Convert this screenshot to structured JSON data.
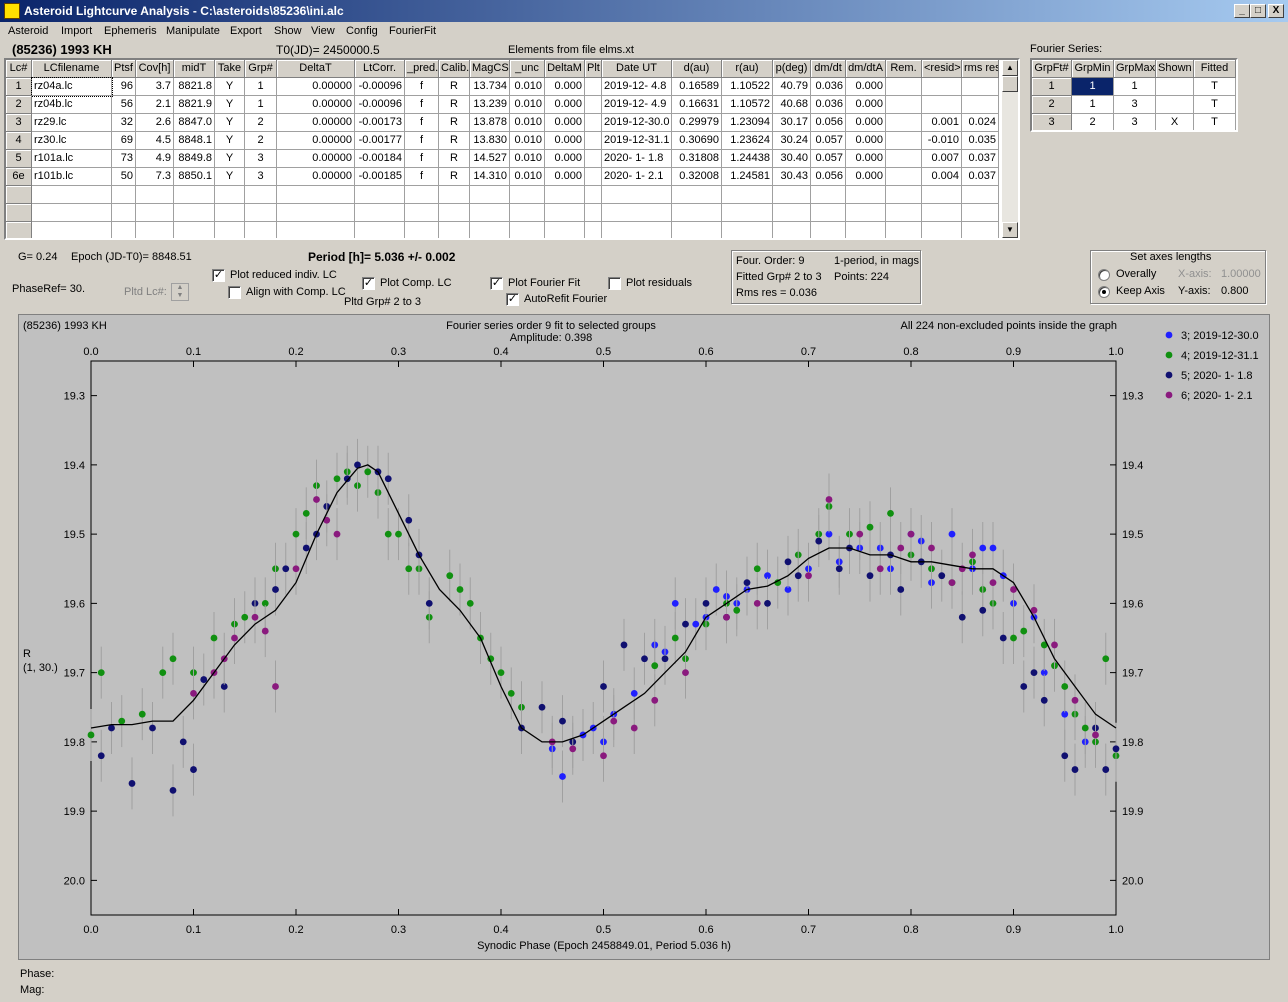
{
  "window": {
    "title": "Asteroid Lightcurve Analysis - C:\\asteroids\\85236\\ini.alc",
    "min": "_",
    "max": "□",
    "close": "X"
  },
  "menu": [
    "Asteroid",
    "Import",
    "Ephemeris",
    "Manipulate",
    "Export",
    "Show",
    "View",
    "Config",
    "FourierFit"
  ],
  "header": {
    "object": "(85236) 1993 KH",
    "t0": "T0(JD)= 2450000.5",
    "elements": "Elements from file elms.xt",
    "fourier_series_label": "Fourier Series:"
  },
  "lc_table": {
    "columns": [
      "Lc#",
      "LCfilename",
      "Ptsf",
      "Cov[h]",
      "midT",
      "Take",
      "Grp#",
      "DeltaT",
      "LtCorr.",
      "_pred.",
      "Calib.",
      "MagCS",
      "_unc",
      "DeltaM",
      "Plt",
      "Date UT",
      "d(au)",
      "r(au)",
      "p(deg)",
      "dm/dt",
      "dm/dtA",
      "Rem.",
      "<resid>",
      "rms res"
    ],
    "rows": [
      [
        "1",
        "rz04a.lc",
        "96",
        "3.7",
        "8821.8",
        "Y",
        "1",
        "0.00000",
        "-0.00096",
        "f",
        "R",
        "13.734",
        "0.010",
        "0.000",
        "",
        "2019-12- 4.8",
        "0.16589",
        "1.10522",
        "40.79",
        "0.036",
        "0.000",
        "",
        "",
        ""
      ],
      [
        "2",
        "rz04b.lc",
        "56",
        "2.1",
        "8821.9",
        "Y",
        "1",
        "0.00000",
        "-0.00096",
        "f",
        "R",
        "13.239",
        "0.010",
        "0.000",
        "",
        "2019-12- 4.9",
        "0.16631",
        "1.10572",
        "40.68",
        "0.036",
        "0.000",
        "",
        "",
        ""
      ],
      [
        "3",
        "rz29.lc",
        "32",
        "2.6",
        "8847.0",
        "Y",
        "2",
        "0.00000",
        "-0.00173",
        "f",
        "R",
        "13.878",
        "0.010",
        "0.000",
        "",
        "2019-12-30.0",
        "0.29979",
        "1.23094",
        "30.17",
        "0.056",
        "0.000",
        "",
        "0.001",
        "0.024"
      ],
      [
        "4",
        "rz30.lc",
        "69",
        "4.5",
        "8848.1",
        "Y",
        "2",
        "0.00000",
        "-0.00177",
        "f",
        "R",
        "13.830",
        "0.010",
        "0.000",
        "",
        "2019-12-31.1",
        "0.30690",
        "1.23624",
        "30.24",
        "0.057",
        "0.000",
        "",
        "-0.010",
        "0.035"
      ],
      [
        "5",
        "r101a.lc",
        "73",
        "4.9",
        "8849.8",
        "Y",
        "3",
        "0.00000",
        "-0.00184",
        "f",
        "R",
        "14.527",
        "0.010",
        "0.000",
        "",
        "2020- 1- 1.8",
        "0.31808",
        "1.24438",
        "30.40",
        "0.057",
        "0.000",
        "",
        "0.007",
        "0.037"
      ],
      [
        "6e",
        "r101b.lc",
        "50",
        "7.3",
        "8850.1",
        "Y",
        "3",
        "0.00000",
        "-0.00185",
        "f",
        "R",
        "14.310",
        "0.010",
        "0.000",
        "",
        "2020- 1- 2.1",
        "0.32008",
        "1.24581",
        "30.43",
        "0.056",
        "0.000",
        "",
        "0.004",
        "0.037"
      ]
    ]
  },
  "fourier_table": {
    "columns": [
      "GrpFt#",
      "GrpMin",
      "GrpMax",
      "Shown",
      "Fitted"
    ],
    "rows": [
      [
        "1",
        "1",
        "1",
        "",
        "T"
      ],
      [
        "2",
        "1",
        "3",
        "",
        "T"
      ],
      [
        "3",
        "2",
        "3",
        "X",
        "T"
      ]
    ]
  },
  "controls": {
    "g": "G= 0.24",
    "epoch": "Epoch (JD-T0)= 8848.51",
    "period": "Period [h]= 5.036 +/- 0.002",
    "phaseref": "PhaseRef= 30.",
    "pltd_lc": "Pltd Lc#:",
    "plot_reduced": "Plot reduced indiv. LC",
    "align_comp": "Align with Comp. LC",
    "plot_comp": "Plot Comp. LC",
    "pltd_grp": "Pltd Grp#  2   to   3",
    "plot_fourier": "Plot Fourier Fit",
    "autorefit": "AutoRefit Fourier",
    "plot_residuals": "Plot residuals",
    "four_order": "Four. Order:  9",
    "one_period": "1-period, in mags",
    "fitted_grp": "Fitted Grp# 2 to 3",
    "points": "Points: 224",
    "rms": "Rms res     = 0.036",
    "axes_title": "Set axes lengths",
    "overally": "Overally",
    "keep_axis": "Keep Axis",
    "xaxis_label": "X-axis:",
    "xaxis_val": "1.00000",
    "yaxis_label": "Y-axis:",
    "yaxis_val": "0.800",
    "phase_label": "Phase:",
    "mag_label": "Mag:",
    "check_mark": "✓"
  },
  "chart_data": {
    "type": "scatter",
    "corner_title": "(85236) 1993 KH",
    "title": "Fourier series order 9 fit to selected groups",
    "subtitle": "Amplitude: 0.398",
    "note": "All 224 non-excluded points inside the graph",
    "xlabel": "Synodic Phase (Epoch 2458849.01, Period 5.036 h)",
    "ylabel": "R",
    "ylabel2": "(1, 30.)",
    "xlim": [
      0,
      1
    ],
    "ylim": [
      20.05,
      19.25
    ],
    "xticks": [
      "0.0",
      "0.1",
      "0.2",
      "0.3",
      "0.4",
      "0.5",
      "0.6",
      "0.7",
      "0.8",
      "0.9",
      "1.0"
    ],
    "yticks": [
      "19.3",
      "19.4",
      "19.5",
      "19.6",
      "19.7",
      "19.8",
      "19.9",
      "20.0"
    ],
    "series": [
      {
        "name": "3; 2019-12-30.0",
        "color": "#2020ff",
        "x": [
          0.45,
          0.46,
          0.48,
          0.49,
          0.5,
          0.51,
          0.53,
          0.55,
          0.56,
          0.57,
          0.59,
          0.6,
          0.61,
          0.62,
          0.63,
          0.64,
          0.66,
          0.68,
          0.7,
          0.72,
          0.73,
          0.75,
          0.77,
          0.78,
          0.8,
          0.81,
          0.82,
          0.84,
          0.86,
          0.87,
          0.88,
          0.89,
          0.9,
          0.92,
          0.93,
          0.95,
          0.97
        ],
        "y": [
          19.81,
          19.85,
          19.79,
          19.78,
          19.8,
          19.76,
          19.73,
          19.66,
          19.67,
          19.6,
          19.63,
          19.62,
          19.58,
          19.59,
          19.6,
          19.58,
          19.56,
          19.58,
          19.55,
          19.5,
          19.54,
          19.52,
          19.52,
          19.55,
          19.5,
          19.51,
          19.57,
          19.5,
          19.55,
          19.52,
          19.52,
          19.56,
          19.6,
          19.62,
          19.7,
          19.76,
          19.8
        ]
      },
      {
        "name": "4; 2019-12-31.1",
        "color": "#109010",
        "x": [
          0.0,
          0.01,
          0.03,
          0.05,
          0.07,
          0.08,
          0.1,
          0.12,
          0.14,
          0.15,
          0.17,
          0.18,
          0.2,
          0.21,
          0.22,
          0.24,
          0.25,
          0.26,
          0.27,
          0.28,
          0.29,
          0.3,
          0.31,
          0.32,
          0.33,
          0.35,
          0.36,
          0.37,
          0.38,
          0.39,
          0.4,
          0.41,
          0.42,
          0.55,
          0.57,
          0.58,
          0.6,
          0.62,
          0.63,
          0.65,
          0.67,
          0.69,
          0.71,
          0.72,
          0.74,
          0.76,
          0.78,
          0.8,
          0.82,
          0.84,
          0.86,
          0.87,
          0.88,
          0.9,
          0.91,
          0.93,
          0.94,
          0.95,
          0.96,
          0.97,
          0.98,
          0.99,
          1.0
        ],
        "y": [
          19.79,
          19.7,
          19.77,
          19.76,
          19.7,
          19.68,
          19.7,
          19.65,
          19.63,
          19.62,
          19.6,
          19.55,
          19.5,
          19.47,
          19.43,
          19.42,
          19.41,
          19.43,
          19.41,
          19.44,
          19.5,
          19.5,
          19.55,
          19.55,
          19.62,
          19.56,
          19.58,
          19.6,
          19.65,
          19.68,
          19.7,
          19.73,
          19.75,
          19.69,
          19.65,
          19.68,
          19.63,
          19.6,
          19.61,
          19.55,
          19.57,
          19.53,
          19.5,
          19.46,
          19.5,
          19.49,
          19.47,
          19.53,
          19.55,
          19.57,
          19.54,
          19.58,
          19.6,
          19.65,
          19.64,
          19.66,
          19.69,
          19.72,
          19.76,
          19.78,
          19.8,
          19.68,
          19.82
        ]
      },
      {
        "name": "5; 2020- 1- 1.8",
        "color": "#101070",
        "x": [
          0.01,
          0.02,
          0.04,
          0.06,
          0.08,
          0.09,
          0.1,
          0.11,
          0.13,
          0.16,
          0.18,
          0.19,
          0.21,
          0.22,
          0.23,
          0.25,
          0.26,
          0.28,
          0.29,
          0.31,
          0.32,
          0.33,
          0.42,
          0.44,
          0.46,
          0.47,
          0.5,
          0.52,
          0.54,
          0.56,
          0.58,
          0.6,
          0.62,
          0.64,
          0.66,
          0.68,
          0.69,
          0.71,
          0.73,
          0.74,
          0.76,
          0.78,
          0.79,
          0.81,
          0.83,
          0.85,
          0.87,
          0.89,
          0.91,
          0.92,
          0.93,
          0.95,
          0.96,
          0.98,
          0.99,
          1.0
        ],
        "y": [
          19.82,
          19.78,
          19.86,
          19.78,
          19.87,
          19.8,
          19.84,
          19.71,
          19.72,
          19.6,
          19.58,
          19.55,
          19.52,
          19.5,
          19.46,
          19.42,
          19.4,
          19.41,
          19.42,
          19.48,
          19.53,
          19.6,
          19.78,
          19.75,
          19.77,
          19.8,
          19.72,
          19.66,
          19.68,
          19.68,
          19.63,
          19.6,
          19.62,
          19.57,
          19.6,
          19.54,
          19.56,
          19.51,
          19.55,
          19.52,
          19.56,
          19.53,
          19.58,
          19.54,
          19.56,
          19.62,
          19.61,
          19.65,
          19.72,
          19.7,
          19.74,
          19.82,
          19.84,
          19.78,
          19.84,
          19.81
        ]
      },
      {
        "name": "6; 2020- 1- 2.1",
        "color": "#8a1a7e",
        "x": [
          0.1,
          0.12,
          0.13,
          0.14,
          0.16,
          0.17,
          0.18,
          0.2,
          0.22,
          0.23,
          0.24,
          0.45,
          0.47,
          0.5,
          0.51,
          0.53,
          0.55,
          0.58,
          0.62,
          0.65,
          0.7,
          0.72,
          0.75,
          0.77,
          0.79,
          0.8,
          0.82,
          0.84,
          0.85,
          0.86,
          0.88,
          0.9,
          0.92,
          0.94,
          0.96,
          0.98
        ],
        "y": [
          19.73,
          19.7,
          19.68,
          19.65,
          19.62,
          19.64,
          19.72,
          19.55,
          19.45,
          19.48,
          19.5,
          19.8,
          19.81,
          19.82,
          19.77,
          19.78,
          19.74,
          19.7,
          19.62,
          19.6,
          19.56,
          19.45,
          19.5,
          19.55,
          19.52,
          19.5,
          19.52,
          19.57,
          19.55,
          19.53,
          19.57,
          19.58,
          19.61,
          19.66,
          19.74,
          19.79
        ]
      }
    ],
    "fit_curve": {
      "x": [
        0,
        0.02,
        0.04,
        0.06,
        0.08,
        0.1,
        0.12,
        0.14,
        0.16,
        0.18,
        0.2,
        0.22,
        0.24,
        0.26,
        0.27,
        0.28,
        0.3,
        0.32,
        0.34,
        0.36,
        0.38,
        0.4,
        0.42,
        0.44,
        0.46,
        0.48,
        0.5,
        0.52,
        0.54,
        0.56,
        0.58,
        0.6,
        0.62,
        0.64,
        0.66,
        0.68,
        0.7,
        0.72,
        0.74,
        0.76,
        0.78,
        0.8,
        0.82,
        0.84,
        0.86,
        0.88,
        0.9,
        0.92,
        0.94,
        0.96,
        0.98,
        1.0
      ],
      "y": [
        19.78,
        19.775,
        19.775,
        19.77,
        19.77,
        19.74,
        19.7,
        19.66,
        19.63,
        19.61,
        19.57,
        19.5,
        19.44,
        19.405,
        19.4,
        19.41,
        19.47,
        19.53,
        19.58,
        19.61,
        19.65,
        19.72,
        19.78,
        19.8,
        19.8,
        19.79,
        19.77,
        19.75,
        19.73,
        19.7,
        19.67,
        19.62,
        19.6,
        19.58,
        19.575,
        19.56,
        19.535,
        19.52,
        19.52,
        19.53,
        19.53,
        19.54,
        19.54,
        19.545,
        19.55,
        19.55,
        19.57,
        19.62,
        19.68,
        19.72,
        19.76,
        19.78
      ]
    }
  }
}
